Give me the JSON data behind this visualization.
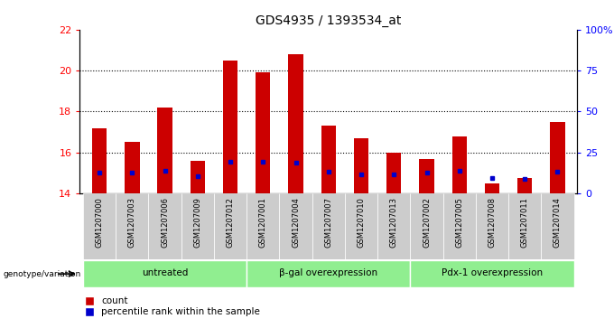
{
  "title": "GDS4935 / 1393534_at",
  "samples": [
    "GSM1207000",
    "GSM1207003",
    "GSM1207006",
    "GSM1207009",
    "GSM1207012",
    "GSM1207001",
    "GSM1207004",
    "GSM1207007",
    "GSM1207010",
    "GSM1207013",
    "GSM1207002",
    "GSM1207005",
    "GSM1207008",
    "GSM1207011",
    "GSM1207014"
  ],
  "count_values": [
    17.2,
    16.5,
    18.2,
    15.6,
    20.5,
    19.9,
    20.8,
    17.3,
    16.7,
    16.0,
    15.7,
    16.8,
    14.5,
    14.75,
    17.5
  ],
  "percentile_values": [
    15.0,
    15.0,
    15.1,
    14.85,
    15.55,
    15.55,
    15.5,
    15.05,
    14.95,
    14.95,
    15.0,
    15.1,
    14.75,
    14.7,
    15.05
  ],
  "groups": [
    {
      "label": "untreated",
      "start": 0,
      "end": 5
    },
    {
      "label": "β-gal overexpression",
      "start": 5,
      "end": 10
    },
    {
      "label": "Pdx-1 overexpression",
      "start": 10,
      "end": 15
    }
  ],
  "ylim_left": [
    14,
    22
  ],
  "ylim_right": [
    0,
    100
  ],
  "yticks_left": [
    14,
    16,
    18,
    20,
    22
  ],
  "yticks_right": [
    0,
    25,
    50,
    75,
    100
  ],
  "bar_color": "#cc0000",
  "dot_color": "#0000cc",
  "group_color": "#90EE90",
  "bar_width": 0.45,
  "bar_bottom": 14,
  "legend_count_color": "#cc0000",
  "legend_pct_color": "#0000cc"
}
